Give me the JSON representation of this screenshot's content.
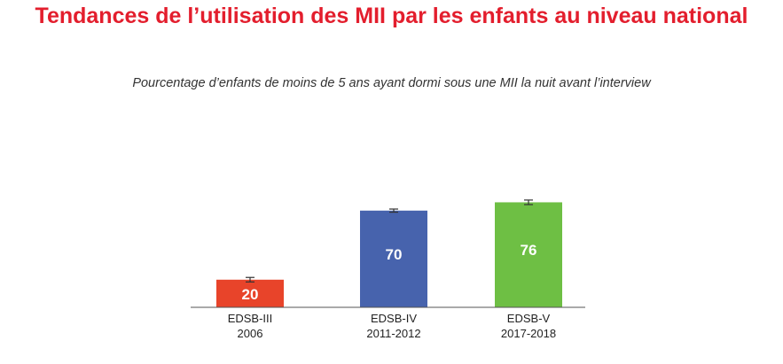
{
  "title": "Tendances de l’utilisation des MII par les enfants au niveau national",
  "subtitle": "Pourcentage d’enfants de moins de 5 ans ayant dormi sous une MII la nuit avant l’interview",
  "chart_data": {
    "type": "bar",
    "categories": [
      {
        "name": "EDSB-III",
        "period": "2006"
      },
      {
        "name": "EDSB-IV",
        "period": "2011-2012"
      },
      {
        "name": "EDSB-V",
        "period": "2017-2018"
      }
    ],
    "values": [
      20,
      70,
      76
    ],
    "error_bars": [
      {
        "low": 19,
        "high": 21
      },
      {
        "low": 69.5,
        "high": 70.5
      },
      {
        "low": 75,
        "high": 77
      }
    ],
    "colors": [
      "#e8442a",
      "#4763ad",
      "#6ebf44"
    ],
    "label_color": "#ffffff",
    "ylim": [
      0,
      100
    ],
    "grid": false,
    "legend": "none"
  }
}
